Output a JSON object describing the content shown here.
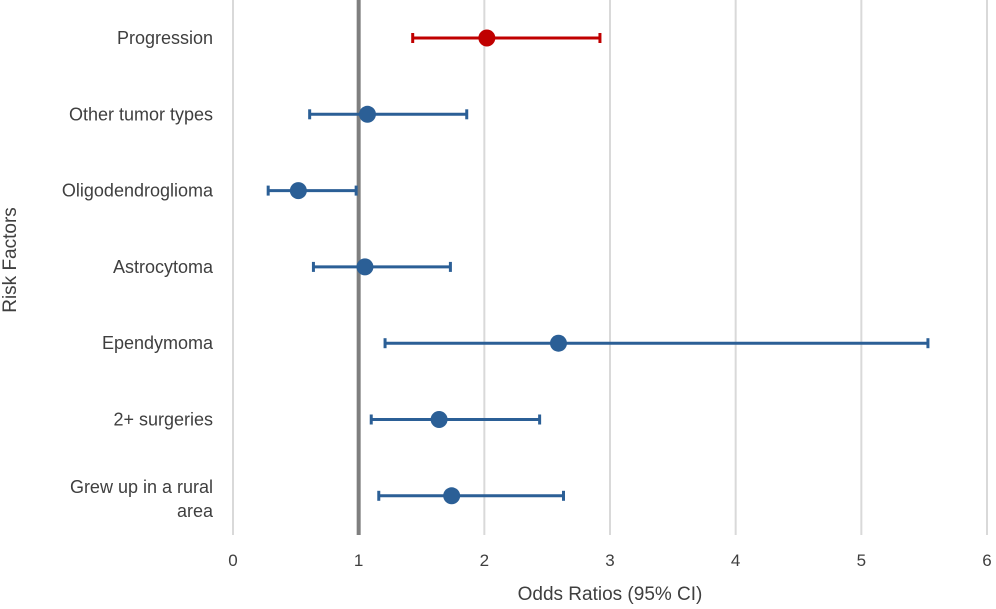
{
  "chart_data": {
    "type": "scatter",
    "title": "",
    "xlabel": "Odds Ratios (95% CI)",
    "ylabel": "Risk Factors",
    "xlim": [
      0,
      6
    ],
    "xticks": [
      "0",
      "1",
      "2",
      "3",
      "4",
      "5",
      "6"
    ],
    "reference_line": 1,
    "grid": "vertical",
    "colors": {
      "default": "#2b5f96",
      "highlight": "#c00000",
      "grid": "#d9d9d9",
      "reference": "#7f7f7f"
    },
    "rows": [
      {
        "label": "Progression",
        "or": 2.02,
        "lower": 1.43,
        "upper": 2.92,
        "highlight": true
      },
      {
        "label": "Other tumor types",
        "or": 1.07,
        "lower": 0.61,
        "upper": 1.86,
        "highlight": false
      },
      {
        "label": "Oligodendroglioma",
        "or": 0.52,
        "lower": 0.28,
        "upper": 0.98,
        "highlight": false
      },
      {
        "label": "Astrocytoma",
        "or": 1.05,
        "lower": 0.64,
        "upper": 1.73,
        "highlight": false
      },
      {
        "label": "Ependymoma",
        "or": 2.59,
        "lower": 1.21,
        "upper": 5.53,
        "highlight": false
      },
      {
        "label": "2+ surgeries",
        "or": 1.64,
        "lower": 1.1,
        "upper": 2.44,
        "highlight": false
      },
      {
        "label": "Grew up in a rural area",
        "label_lines": [
          "Grew up in a rural",
          "area"
        ],
        "or": 1.74,
        "lower": 1.16,
        "upper": 2.63,
        "highlight": false
      }
    ]
  }
}
